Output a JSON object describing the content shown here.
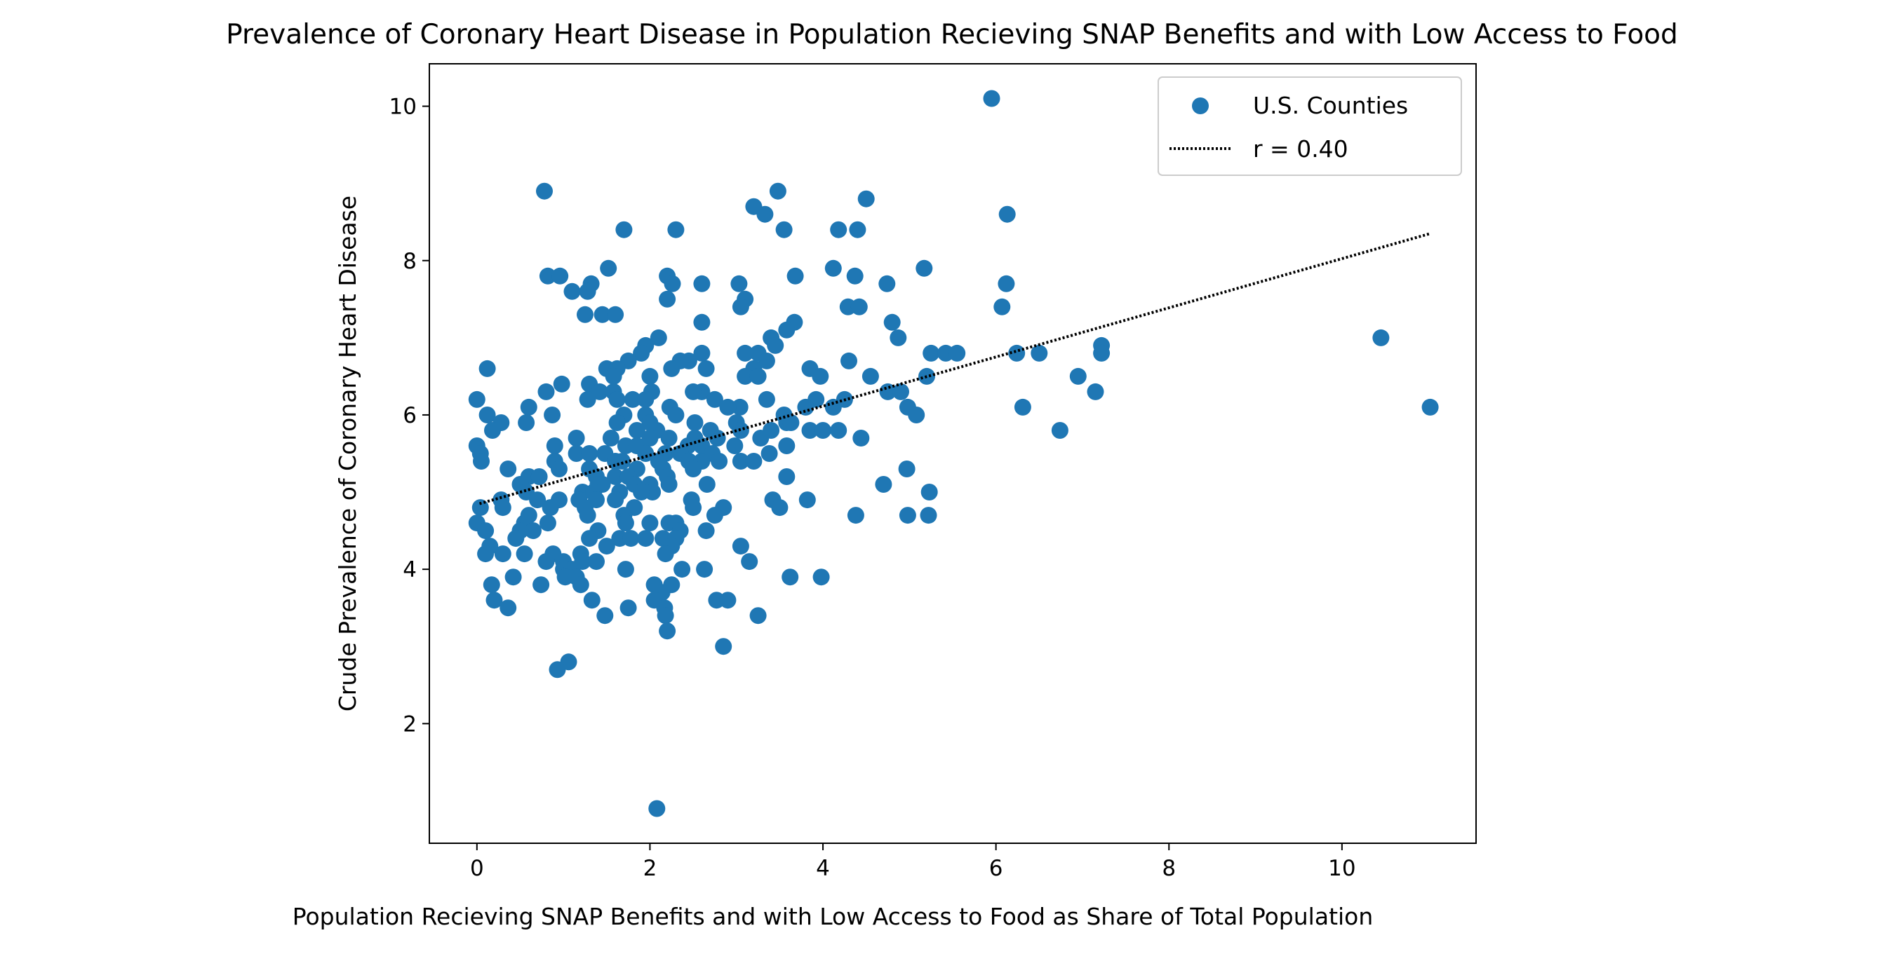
{
  "chart_data": {
    "type": "scatter",
    "title": "Prevalence of Coronary Heart Disease in Population Recieving SNAP Benefits and with Low Access to Food",
    "xlabel": "Population Recieving SNAP Benefits and with Low Access to Food as Share of Total Population",
    "ylabel": "Crude Prevalence of Coronary Heart Disease",
    "xlim": [
      -0.55,
      11.55
    ],
    "ylim": [
      0.45,
      10.55
    ],
    "x_ticks": [
      0,
      2,
      4,
      6,
      8,
      10
    ],
    "y_ticks": [
      2,
      4,
      6,
      8,
      10
    ],
    "grid": false,
    "legend_position": "upper right",
    "colors": {
      "points": "#1f77b4",
      "trend": "#000000"
    },
    "series": [
      {
        "name": "U.S. Counties",
        "points": [
          [
            5.95,
            10.1
          ],
          [
            0.78,
            8.9
          ],
          [
            3.48,
            8.9
          ],
          [
            4.5,
            8.8
          ],
          [
            3.2,
            8.7
          ],
          [
            3.33,
            8.6
          ],
          [
            6.13,
            8.6
          ],
          [
            1.7,
            8.4
          ],
          [
            2.3,
            8.4
          ],
          [
            3.55,
            8.4
          ],
          [
            4.18,
            8.4
          ],
          [
            4.4,
            8.4
          ],
          [
            1.52,
            7.9
          ],
          [
            4.12,
            7.9
          ],
          [
            5.17,
            7.9
          ],
          [
            0.82,
            7.8
          ],
          [
            0.96,
            7.8
          ],
          [
            2.2,
            7.8
          ],
          [
            3.68,
            7.8
          ],
          [
            4.37,
            7.8
          ],
          [
            1.32,
            7.7
          ],
          [
            2.26,
            7.7
          ],
          [
            2.6,
            7.7
          ],
          [
            3.03,
            7.7
          ],
          [
            4.74,
            7.7
          ],
          [
            6.12,
            7.7
          ],
          [
            1.1,
            7.6
          ],
          [
            1.28,
            7.6
          ],
          [
            2.2,
            7.5
          ],
          [
            3.1,
            7.5
          ],
          [
            4.29,
            7.4
          ],
          [
            4.42,
            7.4
          ],
          [
            3.05,
            7.4
          ],
          [
            6.07,
            7.4
          ],
          [
            1.25,
            7.3
          ],
          [
            1.45,
            7.3
          ],
          [
            1.6,
            7.3
          ],
          [
            2.6,
            7.2
          ],
          [
            3.67,
            7.2
          ],
          [
            4.8,
            7.2
          ],
          [
            3.58,
            7.1
          ],
          [
            4.87,
            7.0
          ],
          [
            2.1,
            7.0
          ],
          [
            3.4,
            7.0
          ],
          [
            10.45,
            7.0
          ],
          [
            1.95,
            6.9
          ],
          [
            3.25,
            6.8
          ],
          [
            3.45,
            6.9
          ],
          [
            7.22,
            6.9
          ],
          [
            1.9,
            6.8
          ],
          [
            2.6,
            6.8
          ],
          [
            5.25,
            6.8
          ],
          [
            5.42,
            6.8
          ],
          [
            5.55,
            6.8
          ],
          [
            6.24,
            6.8
          ],
          [
            6.5,
            6.8
          ],
          [
            7.22,
            6.8
          ],
          [
            3.1,
            6.8
          ],
          [
            1.75,
            6.7
          ],
          [
            2.45,
            6.7
          ],
          [
            3.35,
            6.7
          ],
          [
            4.3,
            6.7
          ],
          [
            2.35,
            6.7
          ],
          [
            0.12,
            6.6
          ],
          [
            1.5,
            6.6
          ],
          [
            1.62,
            6.6
          ],
          [
            2.25,
            6.6
          ],
          [
            2.65,
            6.6
          ],
          [
            3.85,
            6.6
          ],
          [
            3.2,
            6.6
          ],
          [
            1.58,
            6.5
          ],
          [
            2.0,
            6.5
          ],
          [
            3.1,
            6.5
          ],
          [
            3.97,
            6.5
          ],
          [
            4.55,
            6.5
          ],
          [
            6.95,
            6.5
          ],
          [
            5.2,
            6.5
          ],
          [
            3.25,
            6.5
          ],
          [
            1.3,
            6.4
          ],
          [
            0.98,
            6.4
          ],
          [
            1.42,
            6.3
          ],
          [
            1.58,
            6.3
          ],
          [
            2.02,
            6.3
          ],
          [
            2.6,
            6.3
          ],
          [
            2.5,
            6.3
          ],
          [
            4.75,
            6.3
          ],
          [
            7.15,
            6.3
          ],
          [
            4.9,
            6.3
          ],
          [
            0.8,
            6.3
          ],
          [
            0.0,
            6.2
          ],
          [
            1.28,
            6.2
          ],
          [
            1.62,
            6.2
          ],
          [
            2.75,
            6.2
          ],
          [
            3.35,
            6.2
          ],
          [
            3.92,
            6.2
          ],
          [
            4.25,
            6.2
          ],
          [
            1.8,
            6.2
          ],
          [
            1.95,
            6.2
          ],
          [
            0.6,
            6.1
          ],
          [
            2.23,
            6.1
          ],
          [
            3.04,
            6.1
          ],
          [
            4.12,
            6.1
          ],
          [
            4.98,
            6.1
          ],
          [
            6.31,
            6.1
          ],
          [
            11.02,
            6.1
          ],
          [
            3.8,
            6.1
          ],
          [
            2.9,
            6.1
          ],
          [
            0.12,
            6.0
          ],
          [
            0.87,
            6.0
          ],
          [
            1.95,
            6.0
          ],
          [
            2.3,
            6.0
          ],
          [
            3.55,
            6.0
          ],
          [
            5.08,
            6.0
          ],
          [
            1.7,
            6.0
          ],
          [
            0.28,
            5.9
          ],
          [
            0.57,
            5.9
          ],
          [
            1.62,
            5.9
          ],
          [
            2.52,
            5.9
          ],
          [
            3.58,
            5.9
          ],
          [
            3.63,
            5.9
          ],
          [
            2.0,
            5.9
          ],
          [
            3.0,
            5.9
          ],
          [
            0.18,
            5.8
          ],
          [
            1.85,
            5.8
          ],
          [
            2.08,
            5.8
          ],
          [
            3.05,
            5.8
          ],
          [
            3.85,
            5.8
          ],
          [
            4.0,
            5.8
          ],
          [
            4.18,
            5.8
          ],
          [
            6.74,
            5.8
          ],
          [
            2.7,
            5.8
          ],
          [
            3.4,
            5.8
          ],
          [
            1.15,
            5.7
          ],
          [
            2.22,
            5.7
          ],
          [
            2.52,
            5.7
          ],
          [
            2.78,
            5.7
          ],
          [
            3.28,
            5.7
          ],
          [
            4.44,
            5.7
          ],
          [
            1.55,
            5.7
          ],
          [
            2.0,
            5.7
          ],
          [
            0.0,
            5.6
          ],
          [
            0.9,
            5.6
          ],
          [
            1.72,
            5.6
          ],
          [
            2.44,
            5.6
          ],
          [
            2.98,
            5.6
          ],
          [
            3.58,
            5.6
          ],
          [
            1.85,
            5.6
          ],
          [
            2.6,
            5.6
          ],
          [
            0.04,
            5.5
          ],
          [
            1.15,
            5.5
          ],
          [
            1.3,
            5.5
          ],
          [
            1.48,
            5.5
          ],
          [
            2.18,
            5.5
          ],
          [
            2.72,
            5.5
          ],
          [
            3.38,
            5.5
          ],
          [
            2.35,
            5.5
          ],
          [
            1.95,
            5.5
          ],
          [
            0.05,
            5.4
          ],
          [
            0.9,
            5.4
          ],
          [
            1.68,
            5.4
          ],
          [
            2.1,
            5.4
          ],
          [
            2.45,
            5.4
          ],
          [
            2.8,
            5.4
          ],
          [
            3.05,
            5.4
          ],
          [
            3.2,
            5.4
          ],
          [
            1.6,
            5.4
          ],
          [
            2.6,
            5.4
          ],
          [
            0.36,
            5.3
          ],
          [
            0.95,
            5.3
          ],
          [
            1.3,
            5.3
          ],
          [
            2.15,
            5.3
          ],
          [
            2.5,
            5.3
          ],
          [
            4.97,
            5.3
          ],
          [
            1.85,
            5.3
          ],
          [
            0.6,
            5.2
          ],
          [
            0.72,
            5.2
          ],
          [
            1.38,
            5.2
          ],
          [
            1.6,
            5.2
          ],
          [
            3.58,
            5.2
          ],
          [
            1.75,
            5.2
          ],
          [
            2.2,
            5.2
          ],
          [
            0.5,
            5.1
          ],
          [
            1.4,
            5.1
          ],
          [
            1.82,
            5.1
          ],
          [
            2.22,
            5.1
          ],
          [
            2.66,
            5.1
          ],
          [
            4.7,
            5.1
          ],
          [
            1.45,
            5.1
          ],
          [
            2.0,
            5.1
          ],
          [
            0.57,
            5.0
          ],
          [
            1.22,
            5.0
          ],
          [
            1.65,
            5.0
          ],
          [
            2.03,
            5.0
          ],
          [
            5.23,
            5.0
          ],
          [
            1.35,
            5.0
          ],
          [
            1.9,
            5.0
          ],
          [
            0.28,
            4.9
          ],
          [
            0.7,
            4.9
          ],
          [
            0.95,
            4.9
          ],
          [
            1.18,
            4.9
          ],
          [
            1.38,
            4.9
          ],
          [
            2.48,
            4.9
          ],
          [
            3.42,
            4.9
          ],
          [
            3.82,
            4.9
          ],
          [
            1.6,
            4.9
          ],
          [
            0.04,
            4.8
          ],
          [
            0.3,
            4.8
          ],
          [
            1.25,
            4.8
          ],
          [
            1.82,
            4.8
          ],
          [
            2.5,
            4.8
          ],
          [
            2.85,
            4.8
          ],
          [
            3.5,
            4.8
          ],
          [
            0.85,
            4.8
          ],
          [
            1.28,
            4.7
          ],
          [
            4.38,
            4.7
          ],
          [
            4.98,
            4.7
          ],
          [
            5.22,
            4.7
          ],
          [
            1.7,
            4.7
          ],
          [
            2.75,
            4.7
          ],
          [
            0.6,
            4.7
          ],
          [
            0.0,
            4.6
          ],
          [
            0.55,
            4.6
          ],
          [
            0.82,
            4.6
          ],
          [
            1.72,
            4.6
          ],
          [
            2.22,
            4.6
          ],
          [
            2.3,
            4.6
          ],
          [
            2.0,
            4.6
          ],
          [
            0.1,
            4.5
          ],
          [
            0.65,
            4.5
          ],
          [
            1.4,
            4.5
          ],
          [
            2.35,
            4.5
          ],
          [
            2.65,
            4.5
          ],
          [
            0.5,
            4.5
          ],
          [
            0.45,
            4.4
          ],
          [
            1.3,
            4.4
          ],
          [
            1.65,
            4.4
          ],
          [
            1.78,
            4.4
          ],
          [
            2.15,
            4.4
          ],
          [
            2.3,
            4.4
          ],
          [
            1.95,
            4.4
          ],
          [
            0.15,
            4.3
          ],
          [
            2.25,
            4.3
          ],
          [
            3.05,
            4.3
          ],
          [
            1.5,
            4.3
          ],
          [
            0.1,
            4.2
          ],
          [
            0.3,
            4.2
          ],
          [
            0.55,
            4.2
          ],
          [
            0.88,
            4.2
          ],
          [
            1.2,
            4.2
          ],
          [
            2.18,
            4.2
          ],
          [
            0.8,
            4.1
          ],
          [
            1.22,
            4.1
          ],
          [
            1.38,
            4.1
          ],
          [
            3.15,
            4.1
          ],
          [
            1.0,
            4.1
          ],
          [
            1.0,
            4.0
          ],
          [
            1.72,
            4.0
          ],
          [
            2.37,
            4.0
          ],
          [
            2.63,
            4.0
          ],
          [
            1.1,
            4.0
          ],
          [
            0.42,
            3.9
          ],
          [
            1.02,
            3.9
          ],
          [
            1.15,
            3.9
          ],
          [
            3.62,
            3.9
          ],
          [
            3.98,
            3.9
          ],
          [
            0.17,
            3.8
          ],
          [
            0.74,
            3.8
          ],
          [
            1.2,
            3.8
          ],
          [
            2.05,
            3.8
          ],
          [
            2.25,
            3.8
          ],
          [
            2.14,
            3.7
          ],
          [
            0.2,
            3.6
          ],
          [
            1.33,
            3.6
          ],
          [
            2.05,
            3.6
          ],
          [
            2.77,
            3.6
          ],
          [
            2.9,
            3.6
          ],
          [
            0.36,
            3.5
          ],
          [
            1.75,
            3.5
          ],
          [
            2.17,
            3.5
          ],
          [
            1.48,
            3.4
          ],
          [
            2.18,
            3.4
          ],
          [
            3.25,
            3.4
          ],
          [
            2.2,
            3.2
          ],
          [
            2.85,
            3.0
          ],
          [
            1.06,
            2.8
          ],
          [
            0.93,
            2.7
          ],
          [
            2.08,
            0.9
          ]
        ]
      },
      {
        "name": "r = 0.40",
        "line": [
          [
            0.03,
            4.85
          ],
          [
            11.02,
            8.35
          ]
        ]
      }
    ]
  }
}
